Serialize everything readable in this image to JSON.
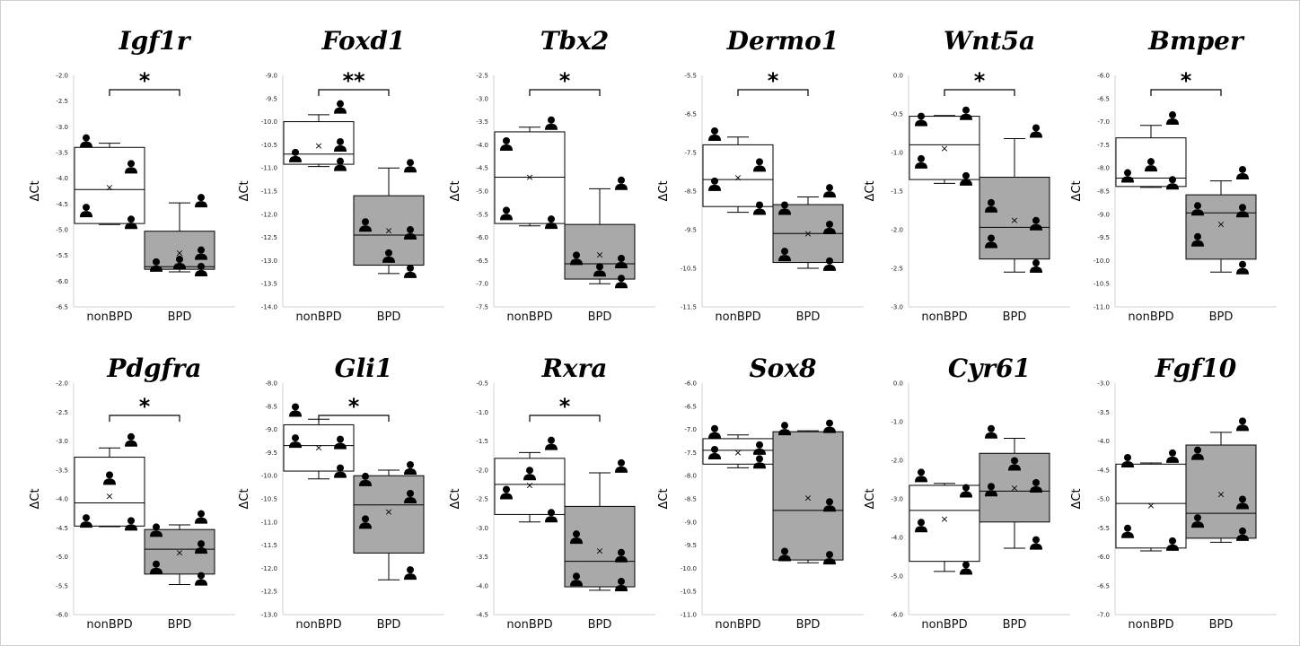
{
  "colors": {
    "nonbpd_fill": "#ffffff",
    "bpd_fill": "#a9a9a9",
    "stroke": "#000000",
    "frame": "#cfcfcf"
  },
  "chart_data": [
    {
      "type": "box",
      "title": "Igf1r",
      "ylabel": "ΔCt",
      "categories": [
        "nonBPD",
        "BPD"
      ],
      "ylim": [
        -6.5,
        -2.0
      ],
      "yticks": [
        "-2.0",
        "-2.5",
        "-3.0",
        "-3.5",
        "-4.0",
        "-4.5",
        "-5.0",
        "-5.5",
        "-6.0",
        "-6.5"
      ],
      "significance": "*",
      "groups": [
        {
          "name": "nonBPD",
          "whisker_low": -4.9,
          "q1": -4.88,
          "median": -4.22,
          "q3": -3.4,
          "whisker_high": -3.32,
          "mean": -4.18,
          "points": [
            {
              "side": "L",
              "y": -3.32
            },
            {
              "side": "R",
              "y": -3.82
            },
            {
              "side": "L",
              "y": -4.67
            },
            {
              "side": "R",
              "y": -4.9
            }
          ]
        },
        {
          "name": "BPD",
          "whisker_low": -5.82,
          "q1": -5.77,
          "median": -5.72,
          "q3": -5.03,
          "whisker_high": -4.48,
          "mean": -5.45,
          "points": [
            {
              "side": "R",
              "y": -4.48
            },
            {
              "side": "R",
              "y": -5.5
            },
            {
              "side": "L",
              "y": -5.73
            },
            {
              "side": "M",
              "y": -5.68
            },
            {
              "side": "R",
              "y": -5.82
            }
          ]
        }
      ]
    },
    {
      "type": "box",
      "title": "Foxd1",
      "ylabel": "ΔCt",
      "categories": [
        "nonBPD",
        "BPD"
      ],
      "ylim": [
        -14.0,
        -9.0
      ],
      "yticks": [
        "-9.0",
        "-9.5",
        "-10.0",
        "-10.5",
        "-11.0",
        "-11.5",
        "-12.0",
        "-12.5",
        "-13.0",
        "-13.5",
        "-14.0"
      ],
      "significance": "**",
      "groups": [
        {
          "name": "nonBPD",
          "whisker_low": -10.97,
          "q1": -10.92,
          "median": -10.7,
          "q3": -10.0,
          "whisker_high": -9.85,
          "mean": -10.52,
          "points": [
            {
              "side": "R",
              "y": -9.73
            },
            {
              "side": "R",
              "y": -10.55
            },
            {
              "side": "L",
              "y": -10.78
            },
            {
              "side": "R",
              "y": -10.97
            }
          ]
        },
        {
          "name": "BPD",
          "whisker_low": -13.28,
          "q1": -13.1,
          "median": -12.45,
          "q3": -11.6,
          "whisker_high": -11.0,
          "mean": -12.35,
          "points": [
            {
              "side": "R",
              "y": -11.0
            },
            {
              "side": "L",
              "y": -12.28
            },
            {
              "side": "R",
              "y": -12.45
            },
            {
              "side": "M",
              "y": -12.95
            },
            {
              "side": "R",
              "y": -13.28
            }
          ]
        }
      ]
    },
    {
      "type": "box",
      "title": "Tbx2",
      "ylabel": "ΔCt",
      "categories": [
        "nonBPD",
        "BPD"
      ],
      "ylim": [
        -7.5,
        -2.5
      ],
      "yticks": [
        "-2.5",
        "-3.0",
        "-3.5",
        "-4.0",
        "-4.5",
        "-5.0",
        "-5.5",
        "-6.0",
        "-6.5",
        "-7.0",
        "-7.5"
      ],
      "significance": "*",
      "groups": [
        {
          "name": "nonBPD",
          "whisker_low": -5.75,
          "q1": -5.7,
          "median": -4.7,
          "q3": -3.72,
          "whisker_high": -3.62,
          "mean": -4.7,
          "points": [
            {
              "side": "R",
              "y": -3.58
            },
            {
              "side": "L",
              "y": -4.03
            },
            {
              "side": "L",
              "y": -5.53
            },
            {
              "side": "R",
              "y": -5.72
            }
          ]
        },
        {
          "name": "BPD",
          "whisker_low": -7.0,
          "q1": -6.9,
          "median": -6.57,
          "q3": -5.72,
          "whisker_high": -4.95,
          "mean": -6.38,
          "points": [
            {
              "side": "R",
              "y": -4.88
            },
            {
              "side": "L",
              "y": -6.5
            },
            {
              "side": "R",
              "y": -6.57
            },
            {
              "side": "M",
              "y": -6.75
            },
            {
              "side": "R",
              "y": -7.0
            }
          ]
        }
      ]
    },
    {
      "type": "box",
      "title": "Dermo1",
      "ylabel": "ΔCt",
      "categories": [
        "nonBPD",
        "BPD"
      ],
      "ylim": [
        -11.5,
        -5.5
      ],
      "yticks": [
        "-5.5",
        "-6.5",
        "-7.5",
        "-8.5",
        "-9.5",
        "-10.5",
        "-11.5"
      ],
      "significance": "*",
      "groups": [
        {
          "name": "nonBPD",
          "whisker_low": -9.05,
          "q1": -8.9,
          "median": -8.2,
          "q3": -7.3,
          "whisker_high": -7.1,
          "mean": -8.15,
          "points": [
            {
              "side": "L",
              "y": -7.08
            },
            {
              "side": "R",
              "y": -7.88
            },
            {
              "side": "L",
              "y": -8.38
            },
            {
              "side": "R",
              "y": -9.0
            }
          ]
        },
        {
          "name": "BPD",
          "whisker_low": -10.5,
          "q1": -10.35,
          "median": -9.6,
          "q3": -8.85,
          "whisker_high": -8.65,
          "mean": -9.6,
          "points": [
            {
              "side": "R",
              "y": -8.55
            },
            {
              "side": "L",
              "y": -9.0
            },
            {
              "side": "R",
              "y": -9.5
            },
            {
              "side": "L",
              "y": -10.2
            },
            {
              "side": "R",
              "y": -10.45
            }
          ]
        }
      ]
    },
    {
      "type": "box",
      "title": "Wnt5a",
      "ylabel": "ΔCt",
      "categories": [
        "nonBPD",
        "BPD"
      ],
      "ylim": [
        -3.0,
        0.0
      ],
      "yticks": [
        "0.0",
        "-0.5",
        "-1.0",
        "-1.5",
        "-2.0",
        "-2.5",
        "-3.0"
      ],
      "significance": "*",
      "groups": [
        {
          "name": "nonBPD",
          "whisker_low": -1.4,
          "q1": -1.35,
          "median": -0.9,
          "q3": -0.53,
          "whisker_high": -0.52,
          "mean": -0.95,
          "points": [
            {
              "side": "L",
              "y": -0.6
            },
            {
              "side": "R",
              "y": -0.52
            },
            {
              "side": "L",
              "y": -1.15
            },
            {
              "side": "R",
              "y": -1.37
            }
          ]
        },
        {
          "name": "BPD",
          "whisker_low": -2.55,
          "q1": -2.38,
          "median": -1.97,
          "q3": -1.32,
          "whisker_high": -0.82,
          "mean": -1.88,
          "points": [
            {
              "side": "R",
              "y": -0.75
            },
            {
              "side": "L",
              "y": -1.72
            },
            {
              "side": "R",
              "y": -1.95
            },
            {
              "side": "L",
              "y": -2.18
            },
            {
              "side": "R",
              "y": -2.5
            }
          ]
        }
      ]
    },
    {
      "type": "box",
      "title": "Bmper",
      "ylabel": "ΔCt",
      "categories": [
        "nonBPD",
        "BPD"
      ],
      "ylim": [
        -11.0,
        -6.0
      ],
      "yticks": [
        "-6.0",
        "-6.5",
        "-7.0",
        "-7.5",
        "-8.0",
        "-8.5",
        "-9.0",
        "-9.5",
        "-10.0",
        "-10.5",
        "-11.0"
      ],
      "significance": "*",
      "groups": [
        {
          "name": "nonBPD",
          "whisker_low": -8.42,
          "q1": -8.4,
          "median": -8.22,
          "q3": -7.35,
          "whisker_high": -7.08,
          "mean": -8.0,
          "points": [
            {
              "side": "R",
              "y": -6.97
            },
            {
              "side": "M",
              "y": -7.98
            },
            {
              "side": "L",
              "y": -8.22
            },
            {
              "side": "R",
              "y": -8.37
            }
          ]
        },
        {
          "name": "BPD",
          "whisker_low": -10.25,
          "q1": -9.97,
          "median": -8.97,
          "q3": -8.58,
          "whisker_high": -8.28,
          "mean": -9.22,
          "points": [
            {
              "side": "R",
              "y": -8.15
            },
            {
              "side": "L",
              "y": -8.93
            },
            {
              "side": "R",
              "y": -8.97
            },
            {
              "side": "L",
              "y": -9.6
            },
            {
              "side": "R",
              "y": -10.2
            }
          ]
        }
      ]
    },
    {
      "type": "box",
      "title": "Pdgfra",
      "ylabel": "ΔCt",
      "categories": [
        "nonBPD",
        "BPD"
      ],
      "ylim": [
        -6.0,
        -2.0
      ],
      "yticks": [
        "-2.0",
        "-2.5",
        "-3.0",
        "-3.5",
        "-4.0",
        "-4.5",
        "-5.0",
        "-5.5",
        "-6.0"
      ],
      "significance": "*",
      "groups": [
        {
          "name": "nonBPD",
          "whisker_low": -4.48,
          "q1": -4.47,
          "median": -4.07,
          "q3": -3.28,
          "whisker_high": -3.12,
          "mean": -3.95,
          "points": [
            {
              "side": "R",
              "y": -3.02
            },
            {
              "side": "M",
              "y": -3.68
            },
            {
              "side": "L",
              "y": -4.42
            },
            {
              "side": "R",
              "y": -4.47
            }
          ]
        },
        {
          "name": "BPD",
          "whisker_low": -5.48,
          "q1": -5.3,
          "median": -4.87,
          "q3": -4.53,
          "whisker_high": -4.45,
          "mean": -4.93,
          "points": [
            {
              "side": "L",
              "y": -4.58
            },
            {
              "side": "R",
              "y": -4.35
            },
            {
              "side": "R",
              "y": -4.87
            },
            {
              "side": "L",
              "y": -5.22
            },
            {
              "side": "R",
              "y": -5.42
            }
          ]
        }
      ]
    },
    {
      "type": "box",
      "title": "Gli1",
      "ylabel": "ΔCt",
      "categories": [
        "nonBPD",
        "BPD"
      ],
      "ylim": [
        -13.0,
        -8.0
      ],
      "yticks": [
        "-8.0",
        "-8.5",
        "-9.0",
        "-9.5",
        "-10.0",
        "-10.5",
        "-11.0",
        "-11.5",
        "-12.0",
        "-12.5",
        "-13.0"
      ],
      "significance": "*",
      "groups": [
        {
          "name": "nonBPD",
          "whisker_low": -10.07,
          "q1": -9.9,
          "median": -9.35,
          "q3": -8.9,
          "whisker_high": -8.78,
          "mean": -9.4,
          "points": [
            {
              "side": "L",
              "y": -8.63
            },
            {
              "side": "L",
              "y": -9.3
            },
            {
              "side": "R",
              "y": -9.33
            },
            {
              "side": "R",
              "y": -9.95
            }
          ]
        },
        {
          "name": "BPD",
          "whisker_low": -12.25,
          "q1": -11.67,
          "median": -10.63,
          "q3": -10.0,
          "whisker_high": -9.88,
          "mean": -10.78,
          "points": [
            {
              "side": "R",
              "y": -9.88
            },
            {
              "side": "L",
              "y": -10.13
            },
            {
              "side": "R",
              "y": -10.5
            },
            {
              "side": "L",
              "y": -11.05
            },
            {
              "side": "R",
              "y": -12.15
            }
          ]
        }
      ]
    },
    {
      "type": "box",
      "title": "Rxra",
      "ylabel": "ΔCt",
      "categories": [
        "nonBPD",
        "BPD"
      ],
      "ylim": [
        -4.5,
        -0.5
      ],
      "yticks": [
        "-0.5",
        "-1.0",
        "-1.5",
        "-2.0",
        "-2.5",
        "-3.0",
        "-3.5",
        "-4.0",
        "-4.5"
      ],
      "significance": "*",
      "groups": [
        {
          "name": "nonBPD",
          "whisker_low": -2.9,
          "q1": -2.77,
          "median": -2.25,
          "q3": -1.8,
          "whisker_high": -1.7,
          "mean": -2.27,
          "points": [
            {
              "side": "R",
              "y": -1.58
            },
            {
              "side": "M",
              "y": -2.1
            },
            {
              "side": "L",
              "y": -2.43
            },
            {
              "side": "R",
              "y": -2.83
            }
          ]
        },
        {
          "name": "BPD",
          "whisker_low": -4.08,
          "q1": -4.02,
          "median": -3.58,
          "q3": -2.63,
          "whisker_high": -2.05,
          "mean": -3.4,
          "points": [
            {
              "side": "R",
              "y": -1.97
            },
            {
              "side": "L",
              "y": -3.2
            },
            {
              "side": "R",
              "y": -3.52
            },
            {
              "side": "L",
              "y": -3.93
            },
            {
              "side": "R",
              "y": -4.02
            }
          ]
        }
      ]
    },
    {
      "type": "box",
      "title": "Sox8",
      "ylabel": "ΔCt",
      "categories": [
        "nonBPD",
        "BPD"
      ],
      "ylim": [
        -11.0,
        -6.0
      ],
      "yticks": [
        "-6.0",
        "-6.5",
        "-7.0",
        "-7.5",
        "-8.0",
        "-8.5",
        "-9.0",
        "-9.5",
        "-10.0",
        "-10.5",
        "-11.0"
      ],
      "significance": "",
      "groups": [
        {
          "name": "nonBPD",
          "whisker_low": -7.83,
          "q1": -7.75,
          "median": -7.45,
          "q3": -7.2,
          "whisker_high": -7.12,
          "mean": -7.5,
          "points": [
            {
              "side": "L",
              "y": -7.1
            },
            {
              "side": "R",
              "y": -7.45
            },
            {
              "side": "L",
              "y": -7.55
            },
            {
              "side": "R",
              "y": -7.75
            }
          ]
        },
        {
          "name": "BPD",
          "whisker_low": -9.88,
          "q1": -9.82,
          "median": -8.75,
          "q3": -7.05,
          "whisker_high": -7.03,
          "mean": -8.48,
          "points": [
            {
              "side": "L",
              "y": -7.03
            },
            {
              "side": "R",
              "y": -6.98
            },
            {
              "side": "R",
              "y": -8.68
            },
            {
              "side": "L",
              "y": -9.75
            },
            {
              "side": "R",
              "y": -9.82
            }
          ]
        }
      ]
    },
    {
      "type": "box",
      "title": "Cyr61",
      "ylabel": "ΔCt",
      "categories": [
        "nonBPD",
        "BPD"
      ],
      "ylim": [
        -6.0,
        0.0
      ],
      "yticks": [
        "0.0",
        "-1.0",
        "-2.0",
        "-3.0",
        "-4.0",
        "-5.0",
        "-6.0"
      ],
      "significance": "",
      "groups": [
        {
          "name": "nonBPD",
          "whisker_low": -4.88,
          "q1": -4.62,
          "median": -3.3,
          "q3": -2.65,
          "whisker_high": -2.6,
          "mean": -3.52,
          "points": [
            {
              "side": "L",
              "y": -2.45
            },
            {
              "side": "R",
              "y": -2.85
            },
            {
              "side": "L",
              "y": -3.75
            },
            {
              "side": "R",
              "y": -4.85
            }
          ]
        },
        {
          "name": "BPD",
          "whisker_low": -4.28,
          "q1": -3.6,
          "median": -2.8,
          "q3": -1.82,
          "whisker_high": -1.43,
          "mean": -2.72,
          "points": [
            {
              "side": "L",
              "y": -1.32
            },
            {
              "side": "M",
              "y": -2.15
            },
            {
              "side": "R",
              "y": -2.72
            },
            {
              "side": "L",
              "y": -2.82
            },
            {
              "side": "R",
              "y": -4.2
            }
          ]
        }
      ]
    },
    {
      "type": "box",
      "title": "Fgf10",
      "ylabel": "ΔCt",
      "categories": [
        "nonBPD",
        "BPD"
      ],
      "ylim": [
        -7.0,
        -3.0
      ],
      "yticks": [
        "-3.0",
        "-3.5",
        "-4.0",
        "-4.5",
        "-5.0",
        "-5.5",
        "-6.0",
        "-6.5",
        "-7.0"
      ],
      "significance": "",
      "groups": [
        {
          "name": "nonBPD",
          "whisker_low": -5.9,
          "q1": -5.85,
          "median": -5.08,
          "q3": -4.4,
          "whisker_high": -4.38,
          "mean": -5.12,
          "points": [
            {
              "side": "L",
              "y": -4.38
            },
            {
              "side": "R",
              "y": -4.3
            },
            {
              "side": "L",
              "y": -5.6
            },
            {
              "side": "R",
              "y": -5.82
            }
          ]
        },
        {
          "name": "BPD",
          "whisker_low": -5.75,
          "q1": -5.68,
          "median": -5.25,
          "q3": -4.07,
          "whisker_high": -3.85,
          "mean": -4.92,
          "points": [
            {
              "side": "R",
              "y": -3.75
            },
            {
              "side": "L",
              "y": -4.25
            },
            {
              "side": "R",
              "y": -5.1
            },
            {
              "side": "L",
              "y": -5.42
            },
            {
              "side": "R",
              "y": -5.65
            }
          ]
        }
      ]
    }
  ]
}
